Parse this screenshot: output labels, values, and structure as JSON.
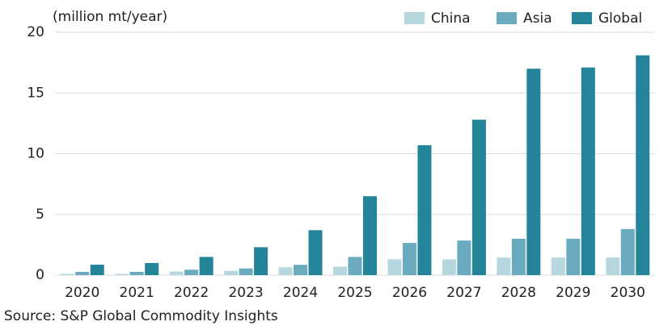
{
  "chart_data": {
    "type": "bar",
    "subtitle": "(million mt/year)",
    "source": "Source: S&P Global Commodity Insights",
    "categories": [
      "2020",
      "2021",
      "2022",
      "2023",
      "2024",
      "2025",
      "2026",
      "2027",
      "2028",
      "2029",
      "2030"
    ],
    "series": [
      {
        "name": "China",
        "color": "#b7d7df",
        "values": [
          0.1,
          0.1,
          0.3,
          0.35,
          0.65,
          0.7,
          1.3,
          1.3,
          1.45,
          1.45,
          1.45
        ]
      },
      {
        "name": "Asia",
        "color": "#6aabbf",
        "values": [
          0.27,
          0.27,
          0.45,
          0.55,
          0.85,
          1.5,
          2.65,
          2.85,
          3.0,
          3.0,
          3.8
        ]
      },
      {
        "name": "Global",
        "color": "#23849a",
        "values": [
          0.86,
          1.0,
          1.5,
          2.3,
          3.7,
          6.5,
          10.7,
          12.8,
          17.0,
          17.1,
          18.1
        ]
      }
    ],
    "ylim": [
      0,
      20
    ],
    "yticks": [
      0,
      5,
      10,
      15,
      20
    ],
    "grid": true,
    "legend": "top-right"
  }
}
